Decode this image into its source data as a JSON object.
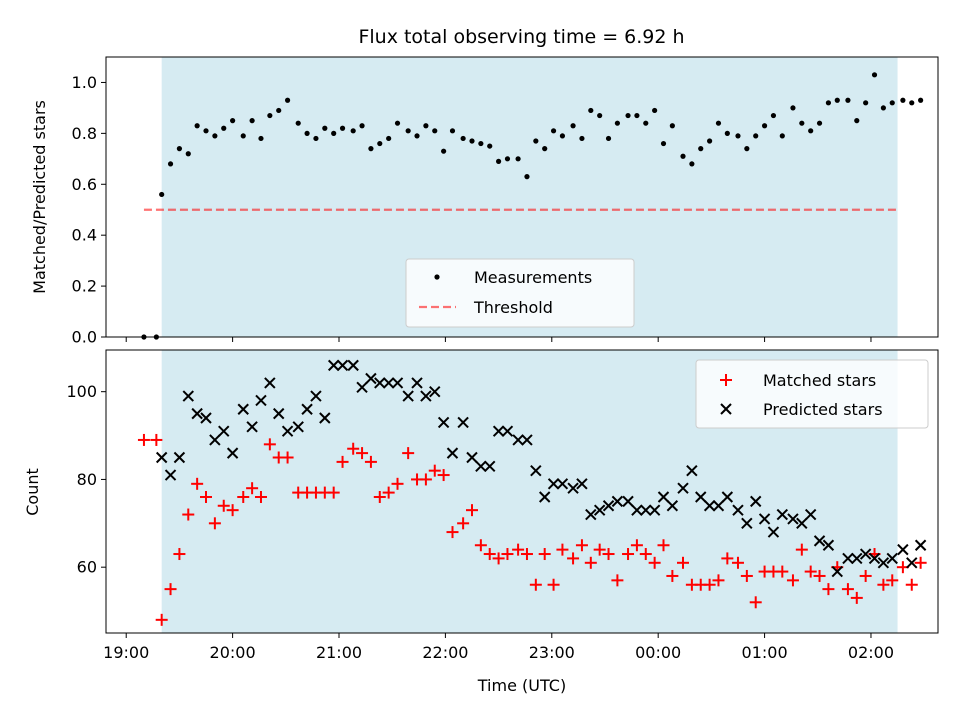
{
  "title": "Flux total observing time = 6.92 h",
  "colors": {
    "shade": "#add8e6",
    "threshold": "#ff0000",
    "measurement": "#000000",
    "matched": "#ff0000",
    "predicted": "#000000"
  },
  "top": {
    "ylabel": "Matched/Predicted stars",
    "ylim": [
      0.0,
      1.1
    ],
    "yticks": [
      "0.0",
      "0.2",
      "0.4",
      "0.6",
      "0.8",
      "1.0"
    ],
    "legend": {
      "measurements": "Measurements",
      "threshold": "Threshold"
    }
  },
  "bottom": {
    "ylabel": "Count",
    "ylim": [
      45,
      109.5
    ],
    "yticks": [
      "60",
      "80",
      "100"
    ],
    "xlabel": "Time (UTC)",
    "legend": {
      "matched": "Matched stars",
      "predicted": "Predicted stars"
    }
  },
  "x_axis": {
    "start": "19:00",
    "end": "02:00",
    "xlim_hours": [
      18.81,
      26.63
    ],
    "tick_labels": [
      "19:00",
      "20:00",
      "21:00",
      "22:00",
      "23:00",
      "00:00",
      "01:00",
      "02:00"
    ]
  },
  "chart_data": [
    {
      "type": "scatter",
      "title": "Flux total observing time = 6.92 h",
      "ylabel": "Matched/Predicted stars",
      "x_unit": "time (UTC)",
      "shaded_interval": [
        "19:20",
        "02:15"
      ],
      "threshold": {
        "name": "Threshold",
        "value": 0.5,
        "from": "19:10",
        "to": "02:15"
      },
      "series": [
        {
          "name": "Measurements",
          "points": [
            [
              "19:10",
              0.0
            ],
            [
              "19:17",
              0.0
            ],
            [
              "19:20",
              0.56
            ],
            [
              "19:25",
              0.68
            ],
            [
              "19:30",
              0.74
            ],
            [
              "19:35",
              0.72
            ],
            [
              "19:40",
              0.83
            ],
            [
              "19:45",
              0.81
            ],
            [
              "19:50",
              0.79
            ],
            [
              "19:55",
              0.82
            ],
            [
              "20:00",
              0.85
            ],
            [
              "20:06",
              0.79
            ],
            [
              "20:11",
              0.85
            ],
            [
              "20:16",
              0.78
            ],
            [
              "20:21",
              0.87
            ],
            [
              "20:26",
              0.89
            ],
            [
              "20:31",
              0.93
            ],
            [
              "20:37",
              0.84
            ],
            [
              "20:42",
              0.8
            ],
            [
              "20:47",
              0.78
            ],
            [
              "20:52",
              0.82
            ],
            [
              "20:57",
              0.8
            ],
            [
              "21:02",
              0.82
            ],
            [
              "21:08",
              0.81
            ],
            [
              "21:13",
              0.83
            ],
            [
              "21:18",
              0.74
            ],
            [
              "21:23",
              0.76
            ],
            [
              "21:28",
              0.78
            ],
            [
              "21:33",
              0.84
            ],
            [
              "21:39",
              0.81
            ],
            [
              "21:44",
              0.79
            ],
            [
              "21:49",
              0.83
            ],
            [
              "21:54",
              0.81
            ],
            [
              "21:59",
              0.73
            ],
            [
              "22:04",
              0.81
            ],
            [
              "22:10",
              0.78
            ],
            [
              "22:15",
              0.77
            ],
            [
              "22:20",
              0.76
            ],
            [
              "22:25",
              0.75
            ],
            [
              "22:30",
              0.69
            ],
            [
              "22:35",
              0.7
            ],
            [
              "22:41",
              0.7
            ],
            [
              "22:46",
              0.63
            ],
            [
              "22:51",
              0.77
            ],
            [
              "22:56",
              0.74
            ],
            [
              "23:01",
              0.81
            ],
            [
              "23:06",
              0.79
            ],
            [
              "23:12",
              0.83
            ],
            [
              "23:17",
              0.78
            ],
            [
              "23:22",
              0.89
            ],
            [
              "23:27",
              0.87
            ],
            [
              "23:32",
              0.78
            ],
            [
              "23:37",
              0.84
            ],
            [
              "23:43",
              0.87
            ],
            [
              "23:48",
              0.87
            ],
            [
              "23:53",
              0.84
            ],
            [
              "23:58",
              0.89
            ],
            [
              "00:03",
              0.76
            ],
            [
              "00:08",
              0.83
            ],
            [
              "00:14",
              0.71
            ],
            [
              "00:19",
              0.68
            ],
            [
              "00:24",
              0.74
            ],
            [
              "00:29",
              0.77
            ],
            [
              "00:34",
              0.84
            ],
            [
              "00:39",
              0.8
            ],
            [
              "00:45",
              0.79
            ],
            [
              "00:50",
              0.74
            ],
            [
              "00:55",
              0.79
            ],
            [
              "01:00",
              0.83
            ],
            [
              "01:05",
              0.87
            ],
            [
              "01:10",
              0.79
            ],
            [
              "01:16",
              0.9
            ],
            [
              "01:21",
              0.84
            ],
            [
              "01:26",
              0.81
            ],
            [
              "01:31",
              0.84
            ],
            [
              "01:36",
              0.92
            ],
            [
              "01:41",
              0.93
            ],
            [
              "01:47",
              0.93
            ],
            [
              "01:52",
              0.85
            ],
            [
              "01:57",
              0.92
            ],
            [
              "02:02",
              1.03
            ],
            [
              "02:07",
              0.9
            ],
            [
              "02:12",
              0.92
            ],
            [
              "02:18",
              0.93
            ],
            [
              "02:23",
              0.92
            ],
            [
              "02:28",
              0.93
            ]
          ]
        }
      ]
    },
    {
      "type": "scatter",
      "ylabel": "Count",
      "xlabel": "Time (UTC)",
      "x_unit": "time (UTC)",
      "shaded_interval": [
        "19:20",
        "02:15"
      ],
      "series": [
        {
          "name": "Matched stars",
          "marker": "plus",
          "points": [
            [
              "19:10",
              89
            ],
            [
              "19:17",
              89
            ],
            [
              "19:20",
              48
            ],
            [
              "19:25",
              55
            ],
            [
              "19:30",
              63
            ],
            [
              "19:35",
              72
            ],
            [
              "19:40",
              79
            ],
            [
              "19:45",
              76
            ],
            [
              "19:50",
              70
            ],
            [
              "19:55",
              74
            ],
            [
              "20:00",
              73
            ],
            [
              "20:06",
              76
            ],
            [
              "20:11",
              78
            ],
            [
              "20:16",
              76
            ],
            [
              "20:21",
              88
            ],
            [
              "20:26",
              85
            ],
            [
              "20:31",
              85
            ],
            [
              "20:37",
              77
            ],
            [
              "20:42",
              77
            ],
            [
              "20:47",
              77
            ],
            [
              "20:52",
              77
            ],
            [
              "20:57",
              77
            ],
            [
              "21:02",
              84
            ],
            [
              "21:08",
              87
            ],
            [
              "21:13",
              86
            ],
            [
              "21:18",
              84
            ],
            [
              "21:23",
              76
            ],
            [
              "21:28",
              77
            ],
            [
              "21:33",
              79
            ],
            [
              "21:39",
              86
            ],
            [
              "21:44",
              80
            ],
            [
              "21:49",
              80
            ],
            [
              "21:54",
              82
            ],
            [
              "21:59",
              81
            ],
            [
              "22:04",
              68
            ],
            [
              "22:10",
              70
            ],
            [
              "22:15",
              73
            ],
            [
              "22:20",
              65
            ],
            [
              "22:25",
              63
            ],
            [
              "22:30",
              62
            ],
            [
              "22:35",
              63
            ],
            [
              "22:41",
              64
            ],
            [
              "22:46",
              63
            ],
            [
              "22:51",
              56
            ],
            [
              "22:56",
              63
            ],
            [
              "23:01",
              56
            ],
            [
              "23:06",
              64
            ],
            [
              "23:12",
              62
            ],
            [
              "23:17",
              65
            ],
            [
              "23:22",
              61
            ],
            [
              "23:27",
              64
            ],
            [
              "23:32",
              63
            ],
            [
              "23:37",
              57
            ],
            [
              "23:43",
              63
            ],
            [
              "23:48",
              65
            ],
            [
              "23:53",
              63
            ],
            [
              "23:58",
              61
            ],
            [
              "00:03",
              65
            ],
            [
              "00:08",
              58
            ],
            [
              "00:14",
              61
            ],
            [
              "00:19",
              56
            ],
            [
              "00:24",
              56
            ],
            [
              "00:29",
              56
            ],
            [
              "00:34",
              57
            ],
            [
              "00:39",
              62
            ],
            [
              "00:45",
              61
            ],
            [
              "00:50",
              58
            ],
            [
              "00:55",
              52
            ],
            [
              "01:00",
              59
            ],
            [
              "01:05",
              59
            ],
            [
              "01:10",
              59
            ],
            [
              "01:16",
              57
            ],
            [
              "01:21",
              64
            ],
            [
              "01:26",
              59
            ],
            [
              "01:31",
              58
            ],
            [
              "01:36",
              55
            ],
            [
              "01:41",
              60
            ],
            [
              "01:47",
              55
            ],
            [
              "01:52",
              53
            ],
            [
              "01:57",
              58
            ],
            [
              "02:02",
              63
            ],
            [
              "02:07",
              56
            ],
            [
              "02:12",
              57
            ],
            [
              "02:18",
              60
            ],
            [
              "02:23",
              56
            ],
            [
              "02:28",
              61
            ]
          ]
        },
        {
          "name": "Predicted stars",
          "marker": "x",
          "points": [
            [
              "19:20",
              85
            ],
            [
              "19:25",
              81
            ],
            [
              "19:30",
              85
            ],
            [
              "19:35",
              99
            ],
            [
              "19:40",
              95
            ],
            [
              "19:45",
              94
            ],
            [
              "19:50",
              89
            ],
            [
              "19:55",
              91
            ],
            [
              "20:00",
              86
            ],
            [
              "20:06",
              96
            ],
            [
              "20:11",
              92
            ],
            [
              "20:16",
              98
            ],
            [
              "20:21",
              102
            ],
            [
              "20:26",
              95
            ],
            [
              "20:31",
              91
            ],
            [
              "20:37",
              92
            ],
            [
              "20:42",
              96
            ],
            [
              "20:47",
              99
            ],
            [
              "20:52",
              94
            ],
            [
              "20:57",
              106
            ],
            [
              "21:02",
              106
            ],
            [
              "21:08",
              106
            ],
            [
              "21:13",
              101
            ],
            [
              "21:18",
              103
            ],
            [
              "21:23",
              102
            ],
            [
              "21:28",
              102
            ],
            [
              "21:33",
              102
            ],
            [
              "21:39",
              99
            ],
            [
              "21:44",
              102
            ],
            [
              "21:49",
              99
            ],
            [
              "21:54",
              100
            ],
            [
              "21:59",
              93
            ],
            [
              "22:04",
              86
            ],
            [
              "22:10",
              93
            ],
            [
              "22:15",
              85
            ],
            [
              "22:20",
              83
            ],
            [
              "22:25",
              83
            ],
            [
              "22:30",
              91
            ],
            [
              "22:35",
              91
            ],
            [
              "22:41",
              89
            ],
            [
              "22:46",
              89
            ],
            [
              "22:51",
              82
            ],
            [
              "22:56",
              76
            ],
            [
              "23:01",
              79
            ],
            [
              "23:06",
              79
            ],
            [
              "23:12",
              78
            ],
            [
              "23:17",
              79
            ],
            [
              "23:22",
              72
            ],
            [
              "23:27",
              73
            ],
            [
              "23:32",
              74
            ],
            [
              "23:37",
              75
            ],
            [
              "23:43",
              75
            ],
            [
              "23:48",
              73
            ],
            [
              "23:53",
              73
            ],
            [
              "23:58",
              73
            ],
            [
              "00:03",
              76
            ],
            [
              "00:08",
              74
            ],
            [
              "00:14",
              78
            ],
            [
              "00:19",
              82
            ],
            [
              "00:24",
              76
            ],
            [
              "00:29",
              74
            ],
            [
              "00:34",
              74
            ],
            [
              "00:39",
              76
            ],
            [
              "00:45",
              73
            ],
            [
              "00:50",
              70
            ],
            [
              "00:55",
              75
            ],
            [
              "01:00",
              71
            ],
            [
              "01:05",
              68
            ],
            [
              "01:10",
              72
            ],
            [
              "01:16",
              71
            ],
            [
              "01:21",
              70
            ],
            [
              "01:26",
              72
            ],
            [
              "01:31",
              66
            ],
            [
              "01:36",
              65
            ],
            [
              "01:41",
              59
            ],
            [
              "01:47",
              62
            ],
            [
              "01:52",
              62
            ],
            [
              "01:57",
              63
            ],
            [
              "02:02",
              62
            ],
            [
              "02:07",
              61
            ],
            [
              "02:12",
              62
            ],
            [
              "02:18",
              64
            ],
            [
              "02:23",
              61
            ],
            [
              "02:28",
              65
            ]
          ]
        }
      ]
    }
  ]
}
